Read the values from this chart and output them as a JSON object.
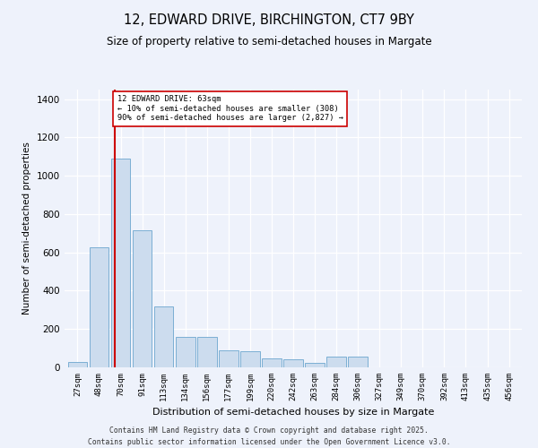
{
  "title_line1": "12, EDWARD DRIVE, BIRCHINGTON, CT7 9BY",
  "title_line2": "Size of property relative to semi-detached houses in Margate",
  "xlabel": "Distribution of semi-detached houses by size in Margate",
  "ylabel": "Number of semi-detached properties",
  "bins": [
    "27sqm",
    "48sqm",
    "70sqm",
    "91sqm",
    "113sqm",
    "134sqm",
    "156sqm",
    "177sqm",
    "199sqm",
    "220sqm",
    "242sqm",
    "263sqm",
    "284sqm",
    "306sqm",
    "327sqm",
    "349sqm",
    "370sqm",
    "392sqm",
    "413sqm",
    "435sqm",
    "456sqm"
  ],
  "values": [
    30,
    625,
    1090,
    715,
    320,
    160,
    160,
    90,
    85,
    45,
    40,
    25,
    55,
    55,
    0,
    0,
    0,
    0,
    0,
    0,
    0
  ],
  "bar_color": "#ccdcee",
  "bar_edge_color": "#7bafd4",
  "property_line_bin_index": 1.72,
  "annotation_title": "12 EDWARD DRIVE: 63sqm",
  "annotation_line1": "← 10% of semi-detached houses are smaller (308)",
  "annotation_line2": "90% of semi-detached houses are larger (2,827) →",
  "vline_color": "#cc0000",
  "annotation_box_color": "#ffffff",
  "annotation_box_edge": "#cc0000",
  "background_color": "#eef2fb",
  "grid_color": "#ffffff",
  "footer_line1": "Contains HM Land Registry data © Crown copyright and database right 2025.",
  "footer_line2": "Contains public sector information licensed under the Open Government Licence v3.0.",
  "ylim": [
    0,
    1450
  ],
  "yticks": [
    0,
    200,
    400,
    600,
    800,
    1000,
    1200,
    1400
  ]
}
